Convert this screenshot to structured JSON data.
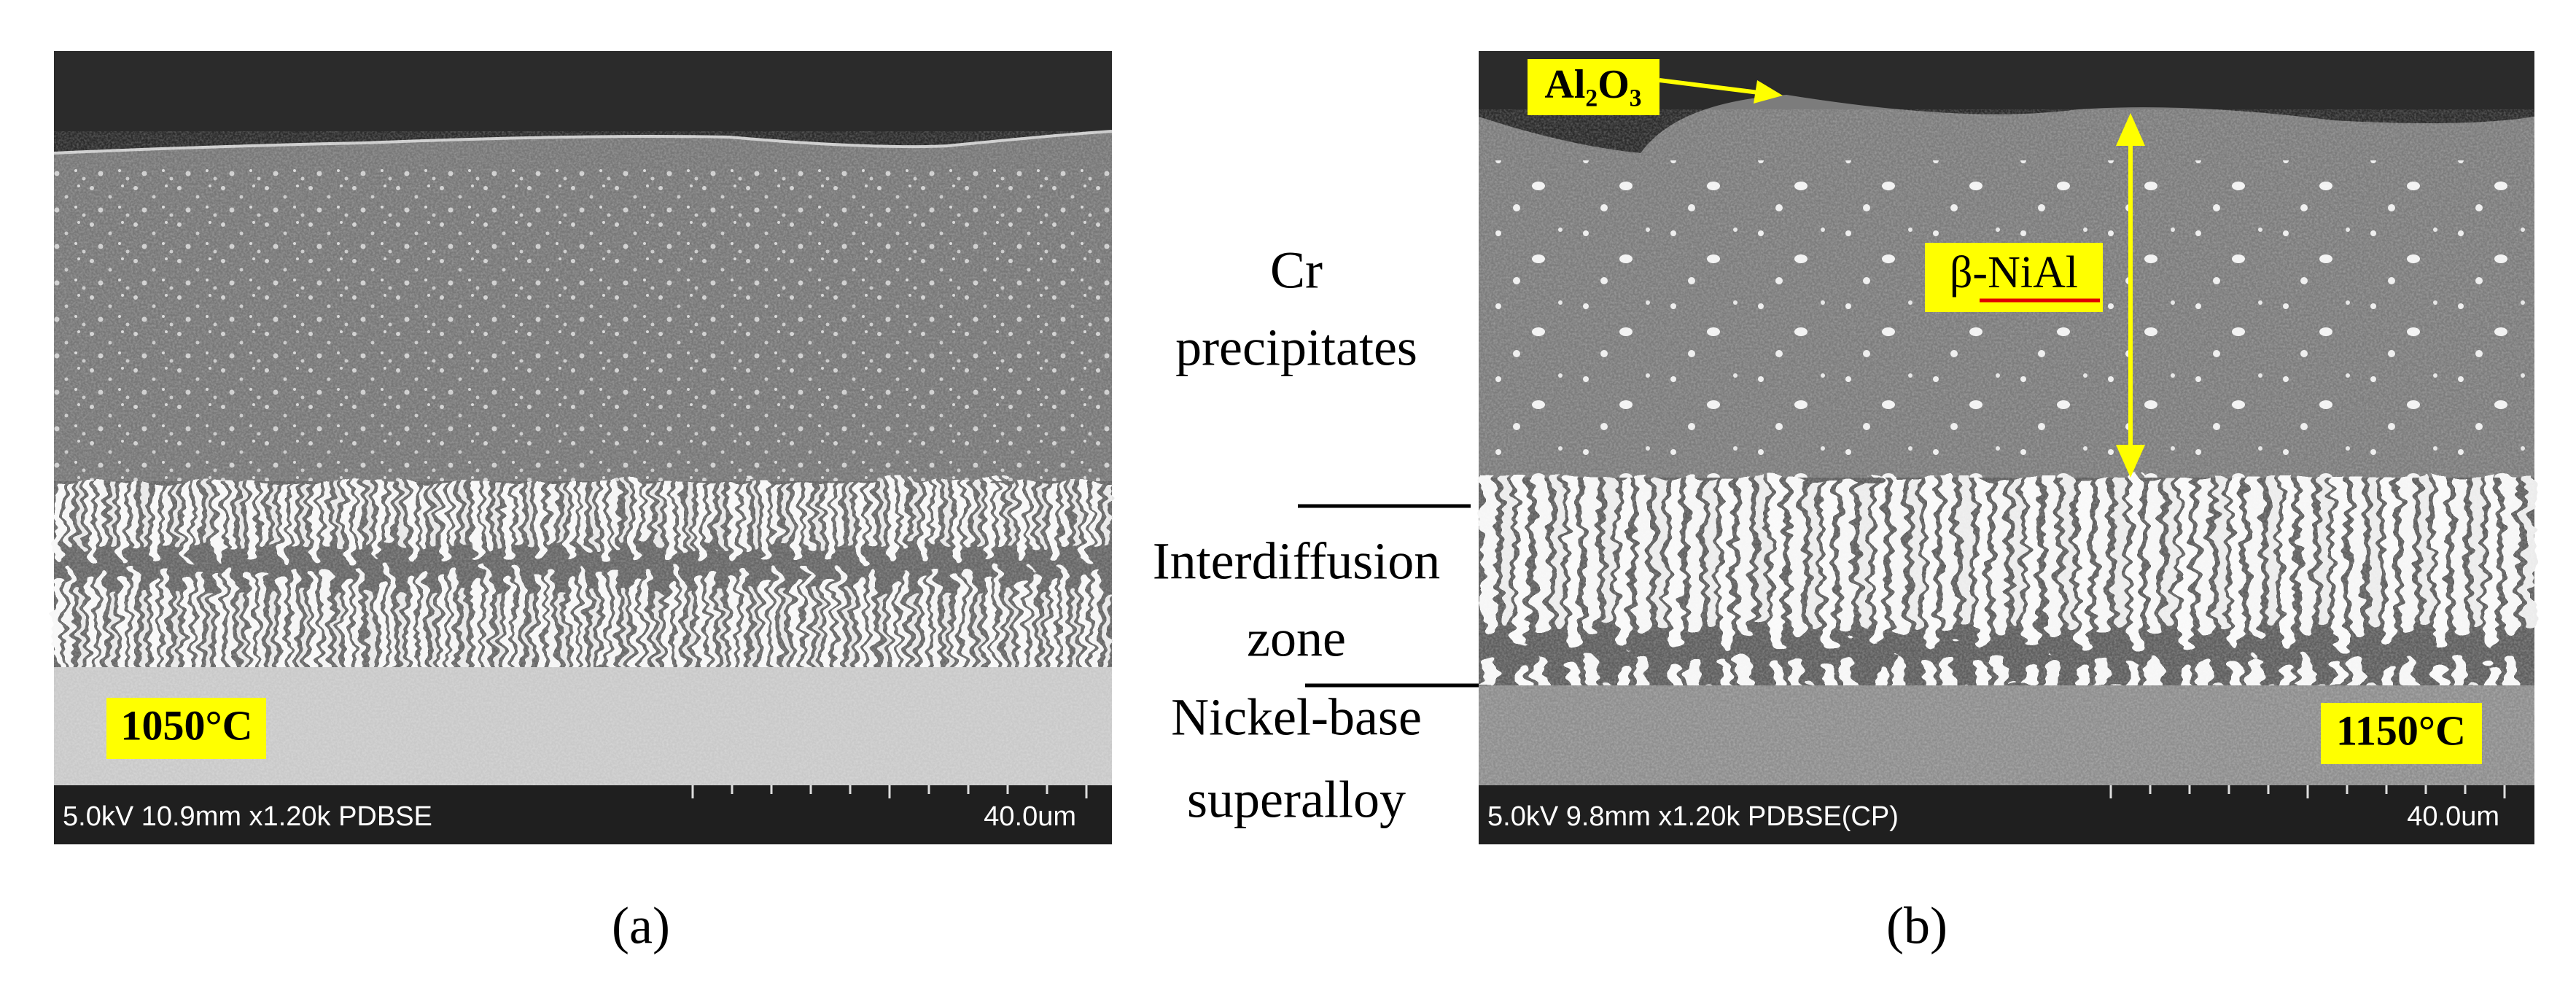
{
  "panels": [
    {
      "label": "(a)",
      "temperature": "1050°C",
      "info": "5.0kV 10.9mm x1.20k PDBSE",
      "scale": "40.0um"
    },
    {
      "label": "(b)",
      "temperature": "1150°C",
      "info": "5.0kV 9.8mm x1.20k PDBSE(CP)",
      "scale": "40.0um",
      "oxide": "Al₂O₃",
      "phase_prefix": "β-",
      "phase": "NiAl"
    }
  ],
  "zones": {
    "precipitates": [
      "Cr",
      "precipitates"
    ],
    "interdiffusion": [
      "Interdiffusion",
      "zone"
    ],
    "substrate": [
      "Nickel-base",
      "superalloy"
    ]
  }
}
